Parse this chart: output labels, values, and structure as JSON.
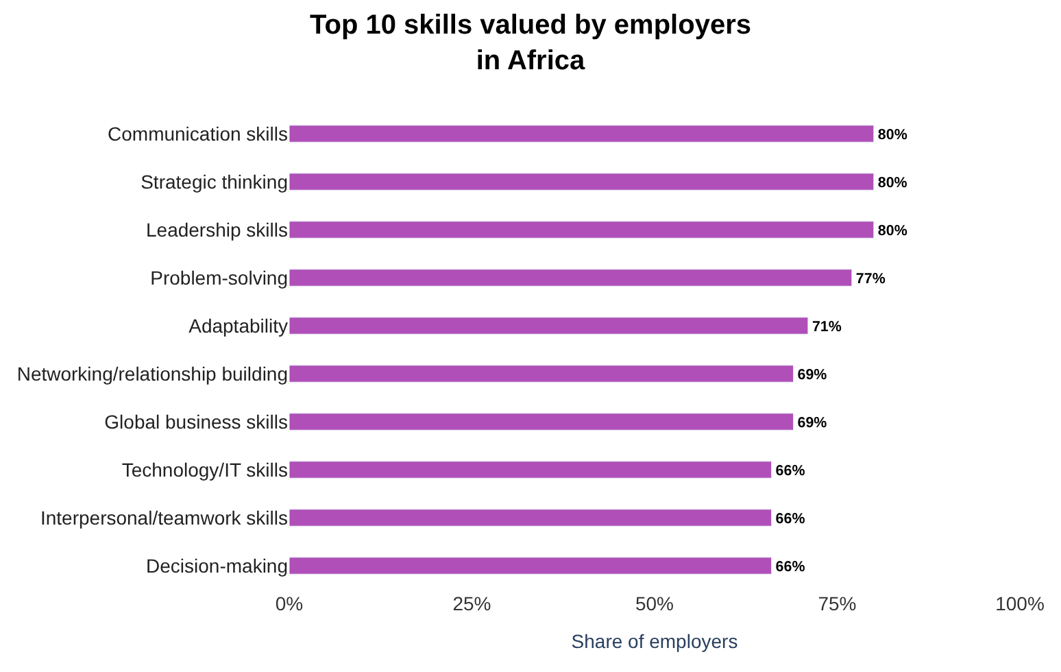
{
  "chart_data": {
    "type": "bar",
    "orientation": "horizontal",
    "title": "Top 10 skills valued by employers\nin Africa",
    "xlabel": "Share of employers",
    "categories": [
      "Communication skills",
      "Strategic thinking",
      "Leadership skills",
      "Problem-solving",
      "Adaptability",
      "Networking/relationship building",
      "Global business skills",
      "Technology/IT skills",
      "Interpersonal/teamwork skills",
      "Decision-making"
    ],
    "values": [
      80,
      80,
      80,
      77,
      71,
      69,
      69,
      66,
      66,
      66
    ],
    "value_labels": [
      "80%",
      "80%",
      "80%",
      "77%",
      "71%",
      "69%",
      "69%",
      "66%",
      "66%",
      "66%"
    ],
    "color": "#b04fb8",
    "xlim": [
      0,
      100
    ],
    "xticks": [
      {
        "value": 0,
        "label": "0%"
      },
      {
        "value": 25,
        "label": "25%"
      },
      {
        "value": 50,
        "label": "50%"
      },
      {
        "value": 75,
        "label": "75%"
      },
      {
        "value": 100,
        "label": "100%"
      }
    ],
    "legend": false
  }
}
